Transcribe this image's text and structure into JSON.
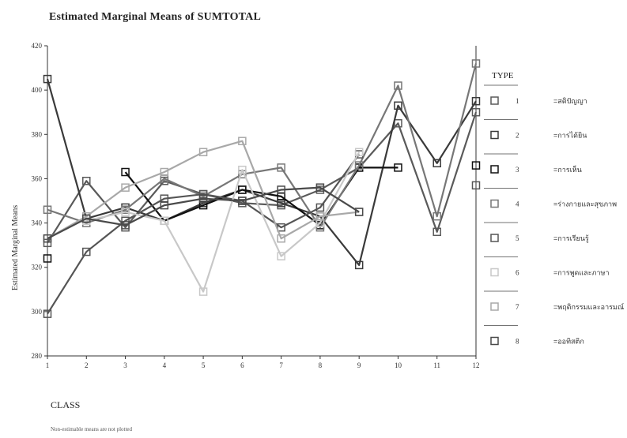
{
  "page": {
    "title": "Estimated Marginal Means of SUMTOTAL",
    "footnote": "Non-estimable means are not plotted"
  },
  "chart_data": {
    "type": "line",
    "title": "Estimated Marginal Means of SUMTOTAL",
    "xlabel": "CLASS",
    "ylabel": "Estimated Marginal Means",
    "x": [
      1,
      2,
      3,
      4,
      5,
      6,
      7,
      8,
      9,
      10,
      11,
      12
    ],
    "ylim": [
      280,
      420
    ],
    "yticks": [
      280,
      300,
      320,
      340,
      360,
      380,
      400,
      420
    ],
    "legend_title": "TYPE",
    "legend_position": "right",
    "series": [
      {
        "name": "สติปัญญา",
        "code": "1",
        "color": "#5a5a5a",
        "values": [
          331,
          359,
          338,
          359,
          353,
          349,
          348,
          355,
          365,
          385,
          336,
          390
        ]
      },
      {
        "name": "การได้ยิน",
        "code": "2",
        "color": "#3a3a3a",
        "values": [
          405,
          342,
          347,
          341,
          349,
          355,
          349,
          343,
          321,
          393,
          367,
          395
        ]
      },
      {
        "name": "การเห็น",
        "code": "3",
        "color": "#111111",
        "values": [
          324,
          null,
          363,
          341,
          348,
          355,
          352,
          339,
          365,
          365,
          null,
          366
        ]
      },
      {
        "name": "ร่างกายและสุขภาพ",
        "code": "4",
        "color": "#777777",
        "values": [
          346,
          340,
          346,
          360,
          352,
          362,
          365,
          338,
          366,
          402,
          343,
          412
        ]
      },
      {
        "name": "การเรียนรู้",
        "code": "5",
        "color": "#555555",
        "values": [
          299,
          327,
          341,
          351,
          353,
          350,
          338,
          347,
          371,
          null,
          null,
          357
        ]
      },
      {
        "name": "การพูดและภาษา",
        "code": "6",
        "color": "#c8c8c8",
        "values": [
          null,
          341,
          345,
          341,
          309,
          364,
          325,
          340,
          372,
          null,
          null,
          null
        ]
      },
      {
        "name": "พฤติกรรมและอารมณ์",
        "code": "7",
        "color": "#a8a8a8",
        "values": [
          333,
          343,
          356,
          363,
          372,
          377,
          333,
          343,
          345,
          null,
          null,
          null
        ]
      },
      {
        "name": "ออทิสติก",
        "code": "8",
        "color": "#4a4a4a",
        "values": [
          333,
          342,
          339,
          348,
          351,
          350,
          355,
          356,
          345,
          null,
          null,
          null
        ]
      }
    ]
  }
}
